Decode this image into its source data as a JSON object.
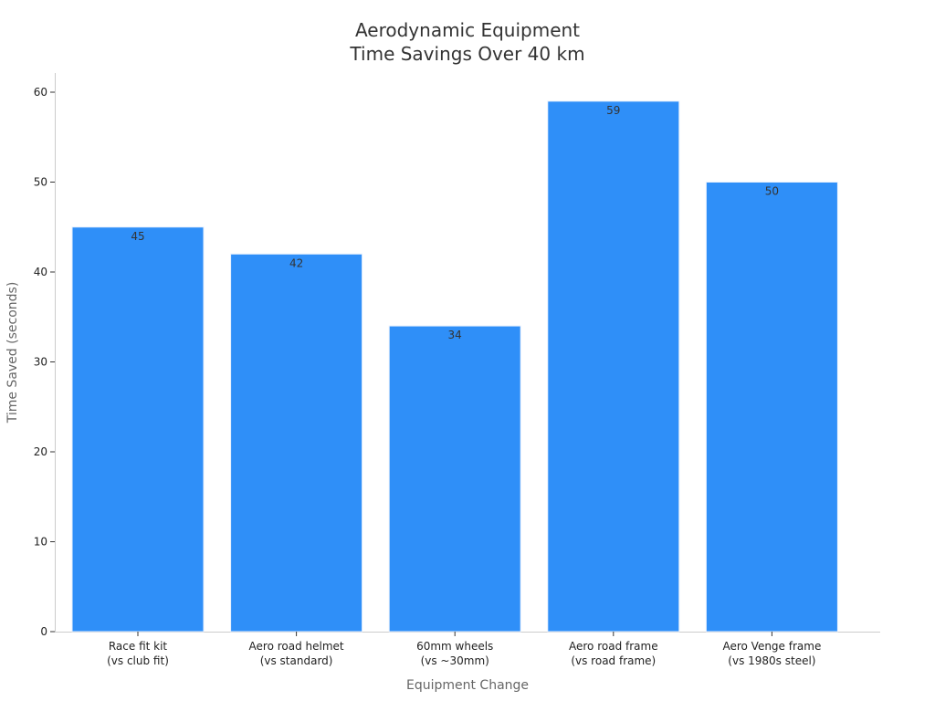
{
  "chart_data": {
    "type": "bar",
    "title_lines": [
      "Aerodynamic Equipment",
      "Time Savings Over 40 km"
    ],
    "xlabel": "Equipment Change",
    "ylabel": "Time Saved (seconds)",
    "categories": [
      [
        "Race fit kit",
        "(vs club fit)"
      ],
      [
        "Aero road helmet",
        "(vs standard)"
      ],
      [
        "60mm wheels",
        "(vs ~30mm)"
      ],
      [
        "Aero road frame",
        "(vs road frame)"
      ],
      [
        "Aero Venge frame",
        "(vs 1980s steel)"
      ]
    ],
    "values": [
      45,
      42,
      34,
      59,
      50
    ],
    "data_labels": [
      "45",
      "42",
      "34",
      "59",
      "50"
    ],
    "yticks": [
      0,
      10,
      20,
      30,
      40,
      50,
      60
    ],
    "ylim": [
      0,
      62
    ],
    "bar_color": "#2f8ff8",
    "grid": false
  }
}
